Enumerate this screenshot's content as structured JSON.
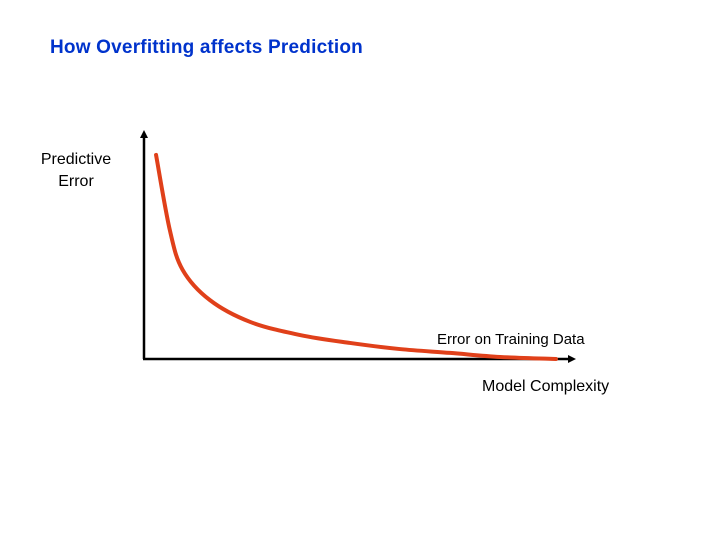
{
  "chart_data": {
    "type": "line",
    "title": "How Overfitting affects Prediction",
    "xlabel": "Model Complexity",
    "ylabel": "Predictive Error",
    "ylabel_lines": [
      "Predictive",
      "Error"
    ],
    "xlim": [
      0,
      10
    ],
    "ylim": [
      0,
      100
    ],
    "grid": false,
    "series": [
      {
        "name": "Error on Training Data",
        "color": "#e0401a",
        "x": [
          0.28,
          0.6,
          0.9,
          1.53,
          2.47,
          3.63,
          4.79,
          5.95,
          7.12,
          8.28,
          9.58
        ],
        "y": [
          90.3,
          57.1,
          39.4,
          26.1,
          16.4,
          10.6,
          7.1,
          4.4,
          2.7,
          0.9,
          0
        ]
      }
    ],
    "annotations": [
      {
        "text": "Error on Training Data"
      }
    ]
  }
}
